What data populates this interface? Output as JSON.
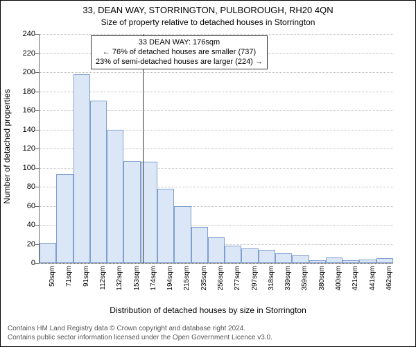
{
  "title": "33, DEAN WAY, STORRINGTON, PULBOROUGH, RH20 4QN",
  "subtitle": "Size of property relative to detached houses in Storrington",
  "ylabel": "Number of detached properties",
  "xlabel": "Distribution of detached houses by size in Storrington",
  "annotation": {
    "line1": "33 DEAN WAY: 176sqm",
    "line2": "← 76% of detached houses are smaller (737)",
    "line3": "23% of semi-detached houses are larger (224) →"
  },
  "footer": {
    "line1": "Contains HM Land Registry data © Crown copyright and database right 2024.",
    "line2": "Contains public sector information licensed under the Open Government Licence v3.0."
  },
  "chart": {
    "type": "histogram",
    "ylim": [
      0,
      240
    ],
    "ytick_step": 20,
    "bar_fill": "#dbe6f6",
    "bar_border": "#7f9fcf",
    "background_color": "#ffffff",
    "grid_color": "#bbbbbb",
    "refline_x_value": 176,
    "categories": [
      "50sqm",
      "71sqm",
      "91sqm",
      "112sqm",
      "132sqm",
      "153sqm",
      "174sqm",
      "194sqm",
      "215sqm",
      "235sqm",
      "256sqm",
      "277sqm",
      "297sqm",
      "318sqm",
      "339sqm",
      "359sqm",
      "380sqm",
      "400sqm",
      "421sqm",
      "441sqm",
      "462sqm"
    ],
    "values": [
      21,
      93,
      198,
      170,
      140,
      107,
      106,
      78,
      60,
      38,
      27,
      18,
      15,
      14,
      10,
      8,
      3,
      6,
      3,
      4,
      5
    ]
  }
}
